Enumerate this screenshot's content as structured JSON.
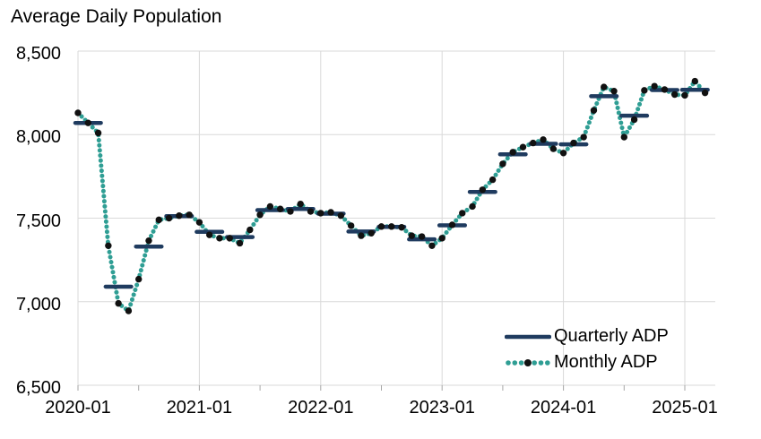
{
  "title": "Average Daily Population",
  "legend": {
    "quarterly_label": "Quarterly ADP",
    "monthly_label": "Monthly ADP"
  },
  "colors": {
    "quarterly_line": "#1f3b5f",
    "monthly_dotted": "#2f9e94",
    "monthly_marker": "#111111",
    "gridline": "#d9d9d9",
    "tick": "#a6a6a6",
    "text": "#000000",
    "background": "#ffffff"
  },
  "chart_data": {
    "type": "line",
    "title": "Average Daily Population",
    "grid": true,
    "legend_position": "inside-bottom-right",
    "y_axis": {
      "min": 6500,
      "max": 8500,
      "step": 500,
      "tick_labels": [
        "8,500",
        "8,000",
        "7,500",
        "7,000",
        "6,500"
      ]
    },
    "x_axis": {
      "tick_labels": [
        "2020-01",
        "2021-01",
        "2022-01",
        "2023-01",
        "2024-01",
        "2025-01"
      ],
      "minor_tick_every_months": 6
    },
    "series": [
      {
        "name": "Monthly ADP",
        "style": "dotted-line-with-markers",
        "x": [
          "2020-01",
          "2020-02",
          "2020-03",
          "2020-04",
          "2020-05",
          "2020-06",
          "2020-07",
          "2020-08",
          "2020-09",
          "2020-10",
          "2020-11",
          "2020-12",
          "2021-01",
          "2021-02",
          "2021-03",
          "2021-04",
          "2021-05",
          "2021-06",
          "2021-07",
          "2021-08",
          "2021-09",
          "2021-10",
          "2021-11",
          "2021-12",
          "2022-01",
          "2022-02",
          "2022-03",
          "2022-04",
          "2022-05",
          "2022-06",
          "2022-07",
          "2022-08",
          "2022-09",
          "2022-10",
          "2022-11",
          "2022-12",
          "2023-01",
          "2023-02",
          "2023-03",
          "2023-04",
          "2023-05",
          "2023-06",
          "2023-07",
          "2023-08",
          "2023-09",
          "2023-10",
          "2023-11",
          "2023-12",
          "2024-01",
          "2024-02",
          "2024-03",
          "2024-04",
          "2024-05",
          "2024-06",
          "2024-07",
          "2024-08",
          "2024-09",
          "2024-10",
          "2024-11",
          "2024-12",
          "2025-01",
          "2025-02",
          "2025-03"
        ],
        "values": [
          8130,
          8070,
          8010,
          7335,
          6990,
          6945,
          7135,
          7365,
          7490,
          7500,
          7515,
          7520,
          7475,
          7400,
          7380,
          7380,
          7350,
          7430,
          7520,
          7570,
          7555,
          7540,
          7585,
          7540,
          7530,
          7535,
          7515,
          7455,
          7395,
          7410,
          7450,
          7450,
          7445,
          7395,
          7390,
          7335,
          7380,
          7460,
          7530,
          7570,
          7670,
          7730,
          7825,
          7895,
          7925,
          7950,
          7970,
          7915,
          7890,
          7950,
          7985,
          8145,
          8285,
          8260,
          7985,
          8090,
          8265,
          8290,
          8270,
          8240,
          8235,
          8320,
          8250
        ]
      },
      {
        "name": "Quarterly ADP",
        "style": "horizontal-step-segments",
        "x": [
          "2020-Q1",
          "2020-Q2",
          "2020-Q3",
          "2020-Q4",
          "2021-Q1",
          "2021-Q2",
          "2021-Q3",
          "2021-Q4",
          "2022-Q1",
          "2022-Q2",
          "2022-Q3",
          "2022-Q4",
          "2023-Q1",
          "2023-Q2",
          "2023-Q3",
          "2023-Q4",
          "2024-Q1",
          "2024-Q2",
          "2024-Q3",
          "2024-Q4",
          "2025-Q1"
        ],
        "values": [
          8070,
          7090,
          7330,
          7512,
          7418,
          7387,
          7548,
          7555,
          7527,
          7420,
          7448,
          7373,
          7457,
          7657,
          7882,
          7945,
          7942,
          8230,
          8113,
          8267,
          8268
        ]
      }
    ]
  }
}
